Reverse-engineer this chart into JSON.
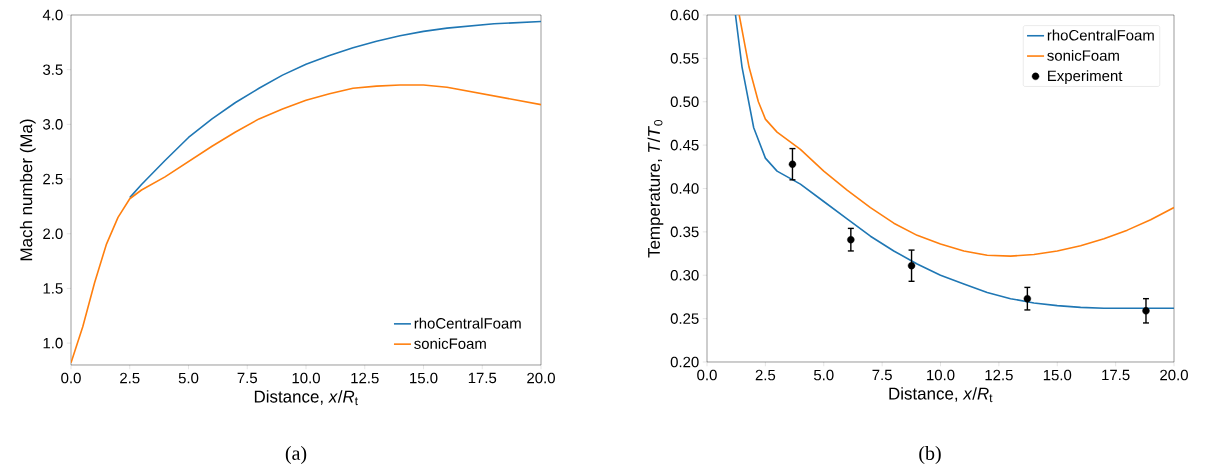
{
  "chart_data": [
    {
      "type": "line",
      "xlabel": "Distance, *x*/*R*$_{t}$",
      "ylabel": "Mach number (Ma)",
      "xlim": [
        0,
        20
      ],
      "ylim": [
        0.8,
        4.0
      ],
      "xticks": [
        {
          "value": 0,
          "label": "0.0"
        },
        {
          "value": 2.5,
          "label": "2.5"
        },
        {
          "value": 5,
          "label": "5.0"
        },
        {
          "value": 7.5,
          "label": "7.5"
        },
        {
          "value": 10,
          "label": "10.0"
        },
        {
          "value": 12.5,
          "label": "12.5"
        },
        {
          "value": 15,
          "label": "15.0"
        },
        {
          "value": 17.5,
          "label": "17.5"
        },
        {
          "value": 20,
          "label": "20.0"
        }
      ],
      "yticks": [
        {
          "value": 1,
          "label": "1.0"
        },
        {
          "value": 1.5,
          "label": "1.5"
        },
        {
          "value": 2,
          "label": "2.0"
        },
        {
          "value": 2.5,
          "label": "2.5"
        },
        {
          "value": 3,
          "label": "3.0"
        },
        {
          "value": 3.5,
          "label": "3.5"
        },
        {
          "value": 4,
          "label": "4.0"
        }
      ],
      "legend": "bottom right",
      "grid": false,
      "marker": "none",
      "line_style": "solid",
      "annotations": [
        "(a)"
      ],
      "series": [
        {
          "name": "rhoCentralFoam",
          "color": "#1f77b4",
          "x": [
            2.5,
            3,
            4,
            5,
            6,
            7,
            8,
            9,
            10,
            11,
            12,
            13,
            14,
            15,
            16,
            17,
            18,
            19,
            20
          ],
          "values": [
            2.33,
            2.45,
            2.67,
            2.88,
            3.05,
            3.2,
            3.33,
            3.45,
            3.55,
            3.63,
            3.7,
            3.76,
            3.81,
            3.85,
            3.88,
            3.9,
            3.92,
            3.93,
            3.94
          ]
        },
        {
          "name": "sonicFoam",
          "color": "#ff7f0e",
          "x": [
            0,
            0.5,
            1,
            1.5,
            2,
            2.5,
            3,
            4,
            5,
            6,
            7,
            8,
            9,
            10,
            11,
            12,
            13,
            14,
            15,
            16,
            17,
            18,
            19,
            20
          ],
          "values": [
            0.82,
            1.15,
            1.55,
            1.9,
            2.15,
            2.32,
            2.4,
            2.52,
            2.66,
            2.8,
            2.93,
            3.05,
            3.14,
            3.22,
            3.28,
            3.33,
            3.35,
            3.36,
            3.36,
            3.34,
            3.3,
            3.26,
            3.22,
            3.18
          ]
        }
      ]
    },
    {
      "type": "line",
      "xlabel": "Distance, *x*/*R*$_{t}$",
      "ylabel": "Temperature, *T*/*T*$_{0}$",
      "xlim": [
        0,
        20
      ],
      "ylim": [
        0.2,
        0.6
      ],
      "xticks": [
        {
          "value": 0,
          "label": "0.0"
        },
        {
          "value": 2.5,
          "label": "2.5"
        },
        {
          "value": 5,
          "label": "5.0"
        },
        {
          "value": 7.5,
          "label": "7.5"
        },
        {
          "value": 10,
          "label": "10.0"
        },
        {
          "value": 12.5,
          "label": "12.5"
        },
        {
          "value": 15,
          "label": "15.0"
        },
        {
          "value": 17.5,
          "label": "17.5"
        },
        {
          "value": 20,
          "label": "20.0"
        }
      ],
      "yticks": [
        {
          "value": 0.2,
          "label": "0.20"
        },
        {
          "value": 0.25,
          "label": "0.25"
        },
        {
          "value": 0.3,
          "label": "0.30"
        },
        {
          "value": 0.35,
          "label": "0.35"
        },
        {
          "value": 0.4,
          "label": "0.40"
        },
        {
          "value": 0.45,
          "label": "0.45"
        },
        {
          "value": 0.5,
          "label": "0.50"
        },
        {
          "value": 0.55,
          "label": "0.55"
        },
        {
          "value": 0.6,
          "label": "0.60"
        }
      ],
      "legend": "top right",
      "grid": false,
      "marker": "none",
      "line_style": "solid",
      "annotations": [
        "(b)"
      ],
      "series": [
        {
          "name": "rhoCentralFoam",
          "color": "#1f77b4",
          "x": [
            1.22,
            1.5,
            2,
            2.5,
            3,
            4,
            5,
            6,
            7,
            8,
            9,
            10,
            11,
            12,
            13,
            14,
            15,
            16,
            17,
            18,
            20
          ],
          "values": [
            0.6,
            0.54,
            0.47,
            0.435,
            0.42,
            0.405,
            0.385,
            0.365,
            0.345,
            0.328,
            0.313,
            0.3,
            0.29,
            0.28,
            0.273,
            0.268,
            0.265,
            0.263,
            0.262,
            0.262,
            0.262
          ]
        },
        {
          "name": "sonicFoam",
          "color": "#ff7f0e",
          "x": [
            1.38,
            1.8,
            2.2,
            2.5,
            3,
            4,
            5,
            6,
            7,
            8,
            9,
            10,
            11,
            12,
            13,
            14,
            15,
            16,
            17,
            18,
            19,
            20
          ],
          "values": [
            0.6,
            0.54,
            0.5,
            0.48,
            0.465,
            0.445,
            0.42,
            0.398,
            0.378,
            0.36,
            0.346,
            0.336,
            0.328,
            0.323,
            0.322,
            0.324,
            0.328,
            0.334,
            0.342,
            0.352,
            0.364,
            0.378
          ]
        },
        {
          "name": "Experiment",
          "type": "scatter",
          "marker": "circle",
          "color": "#000000",
          "x": [
            3.66,
            6.16,
            8.76,
            13.72,
            18.8
          ],
          "values": [
            0.428,
            0.341,
            0.311,
            0.273,
            0.259
          ],
          "errors": [
            0.018,
            0.013,
            0.018,
            0.013,
            0.014
          ]
        }
      ]
    }
  ]
}
